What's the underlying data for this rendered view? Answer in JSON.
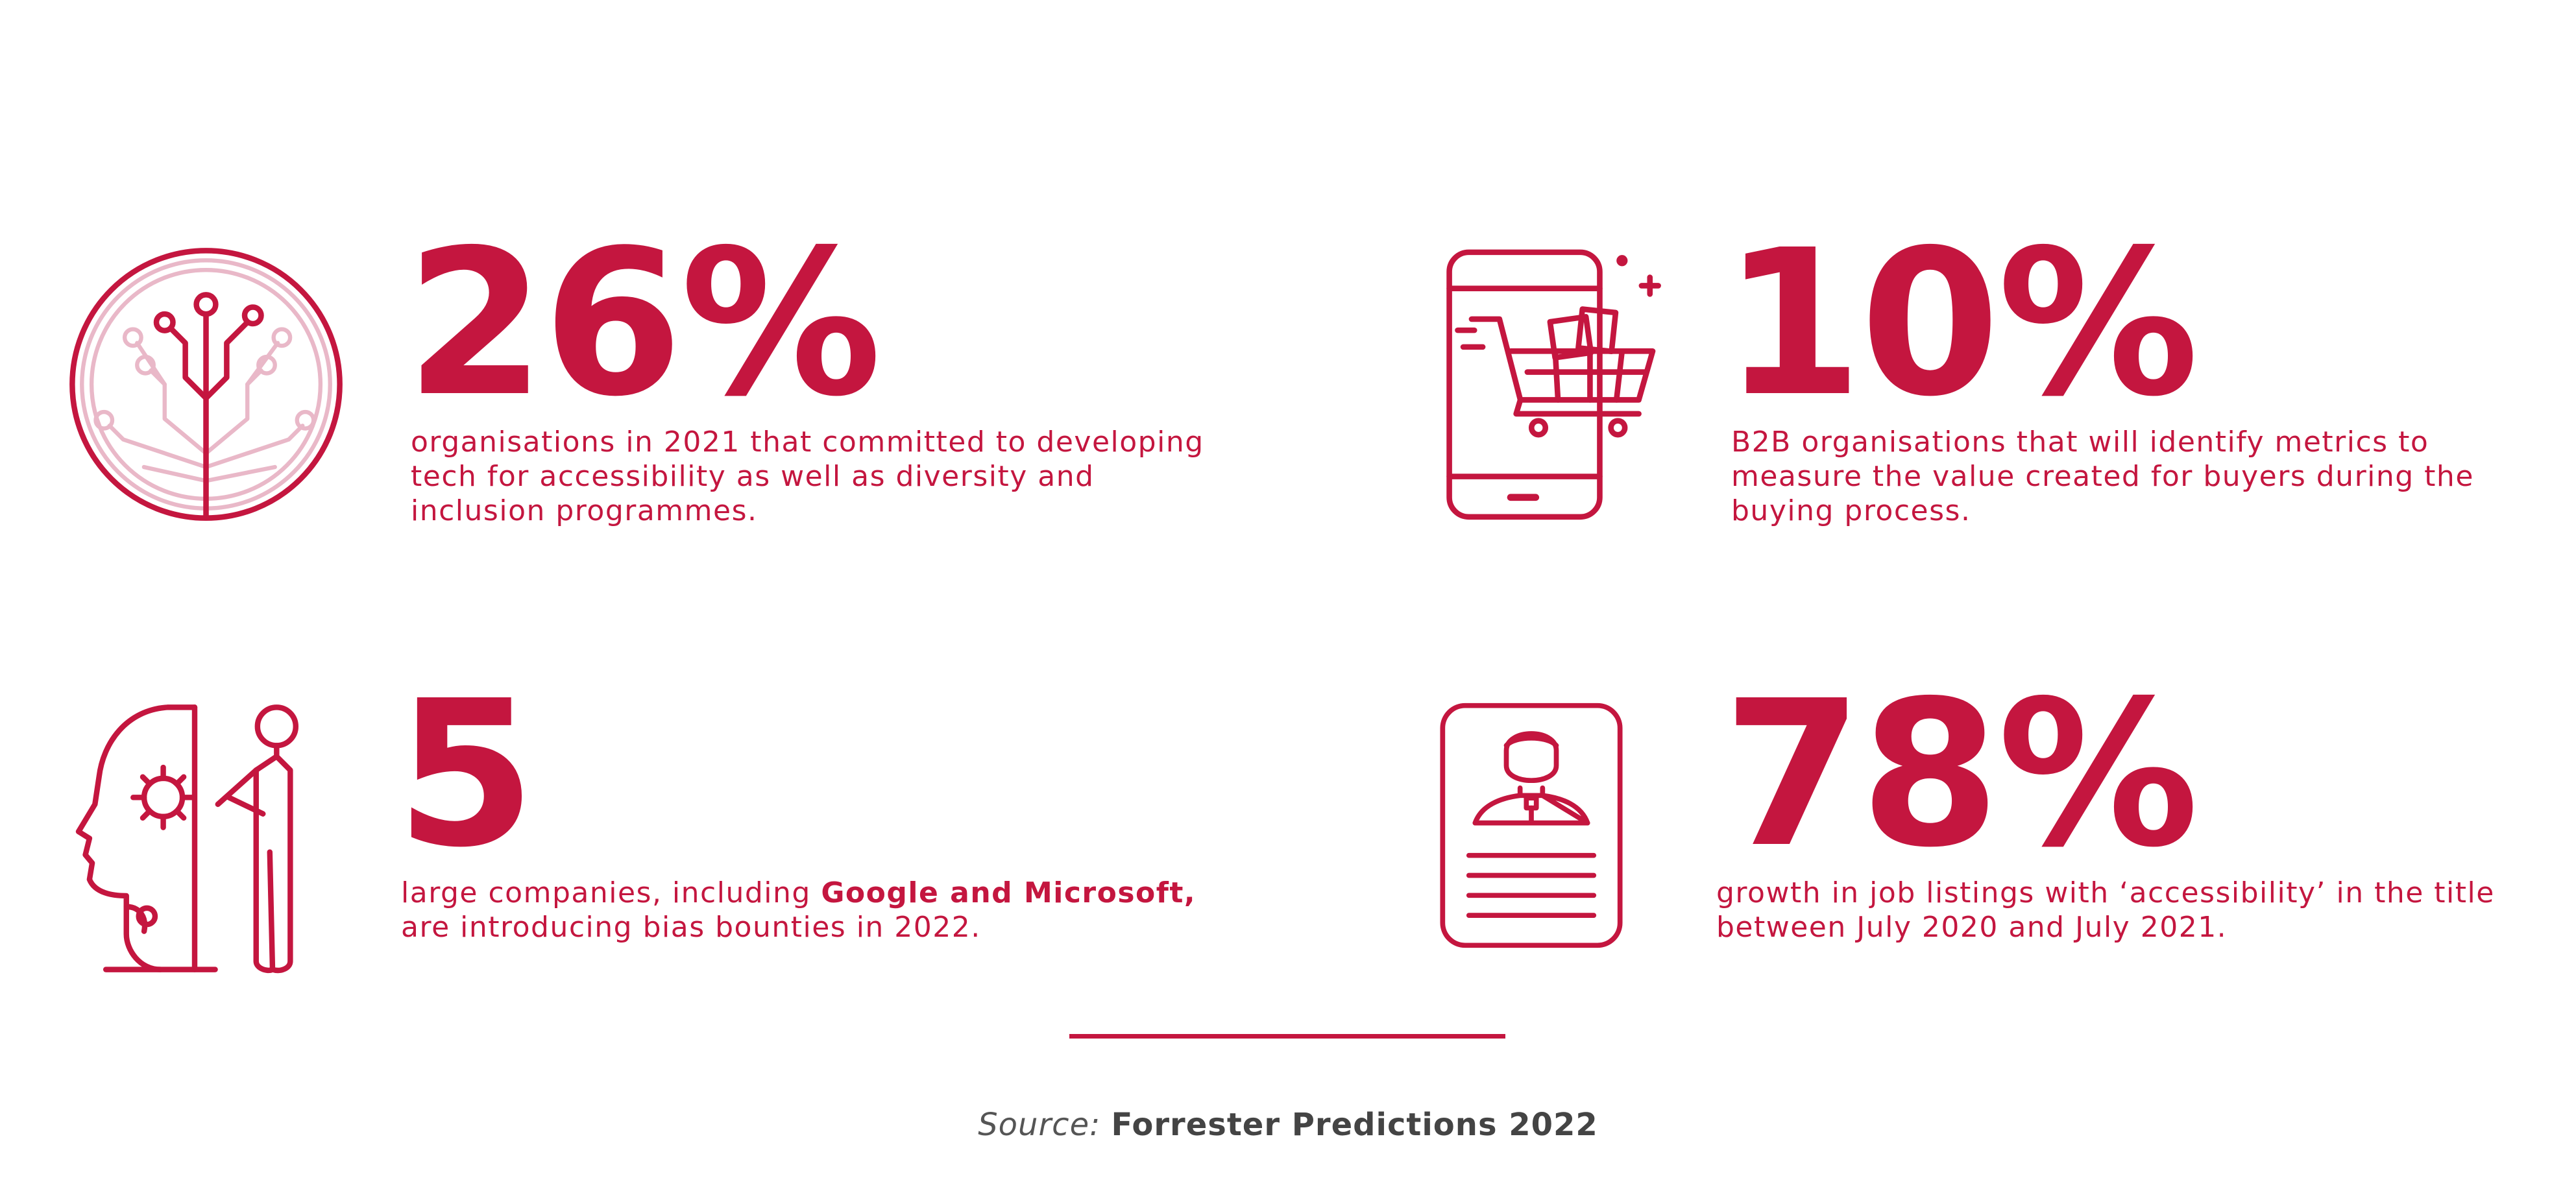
{
  "colors": {
    "accent": "#c4163f",
    "accent_light": "#e9b8c8",
    "source_text": "#444444"
  },
  "stats": [
    {
      "icon": "circuit-tree-icon",
      "value": "26%",
      "description_lines": [
        "organisations in 2021 that committed to developing",
        "tech for accessibility as well as diversity and",
        "inclusion programmes."
      ]
    },
    {
      "icon": "mobile-shopping-cart-icon",
      "value": "10%",
      "description_lines": [
        "B2B organisations that will identify metrics to",
        "measure the value created for buyers during the",
        "buying process."
      ]
    },
    {
      "icon": "ai-head-person-icon",
      "value": "5",
      "description_line1_prefix": "large companies, including ",
      "description_line1_bold": "Google and Microsoft,",
      "description_line2": "are introducing bias bounties in 2022."
    },
    {
      "icon": "profile-document-icon",
      "value": "78%",
      "description_lines": [
        "growth in job listings with ‘accessibility’ in the title",
        "between July 2020 and July 2021."
      ]
    }
  ],
  "source": {
    "label": "Source:",
    "value": "Forrester Predictions 2022"
  }
}
